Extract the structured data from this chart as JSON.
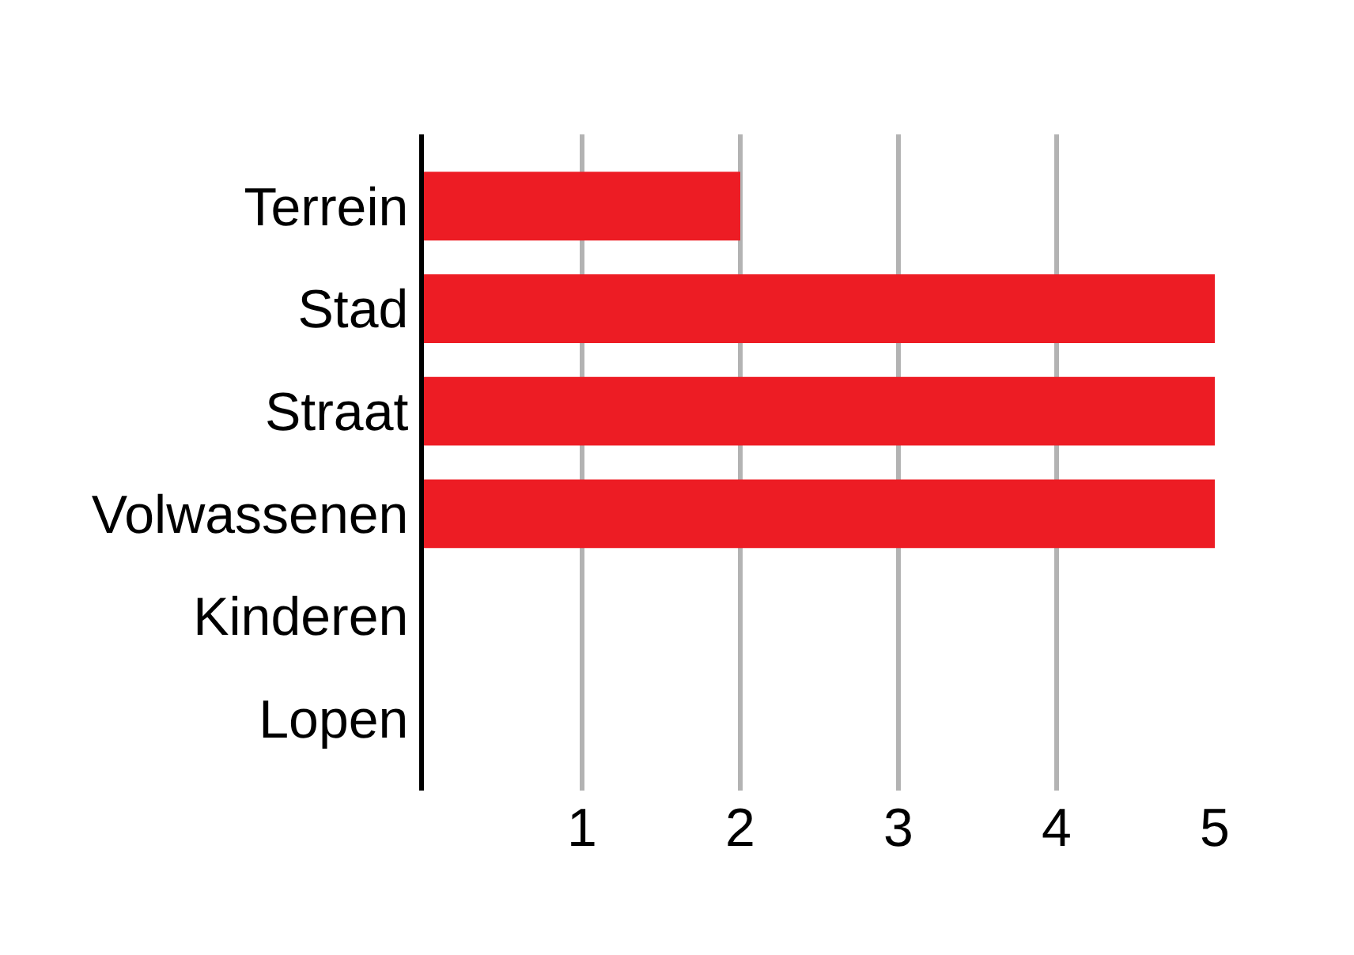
{
  "chart_data": {
    "type": "bar",
    "orientation": "horizontal",
    "categories": [
      "Terrein",
      "Stad",
      "Straat",
      "Volwassenen",
      "Kinderen",
      "Lopen"
    ],
    "values": [
      2,
      5,
      5,
      5,
      0,
      0
    ],
    "color": "#ed1c24",
    "xlim": [
      0,
      5
    ],
    "xticks": [
      1,
      2,
      3,
      4,
      5
    ],
    "grid": "x"
  }
}
